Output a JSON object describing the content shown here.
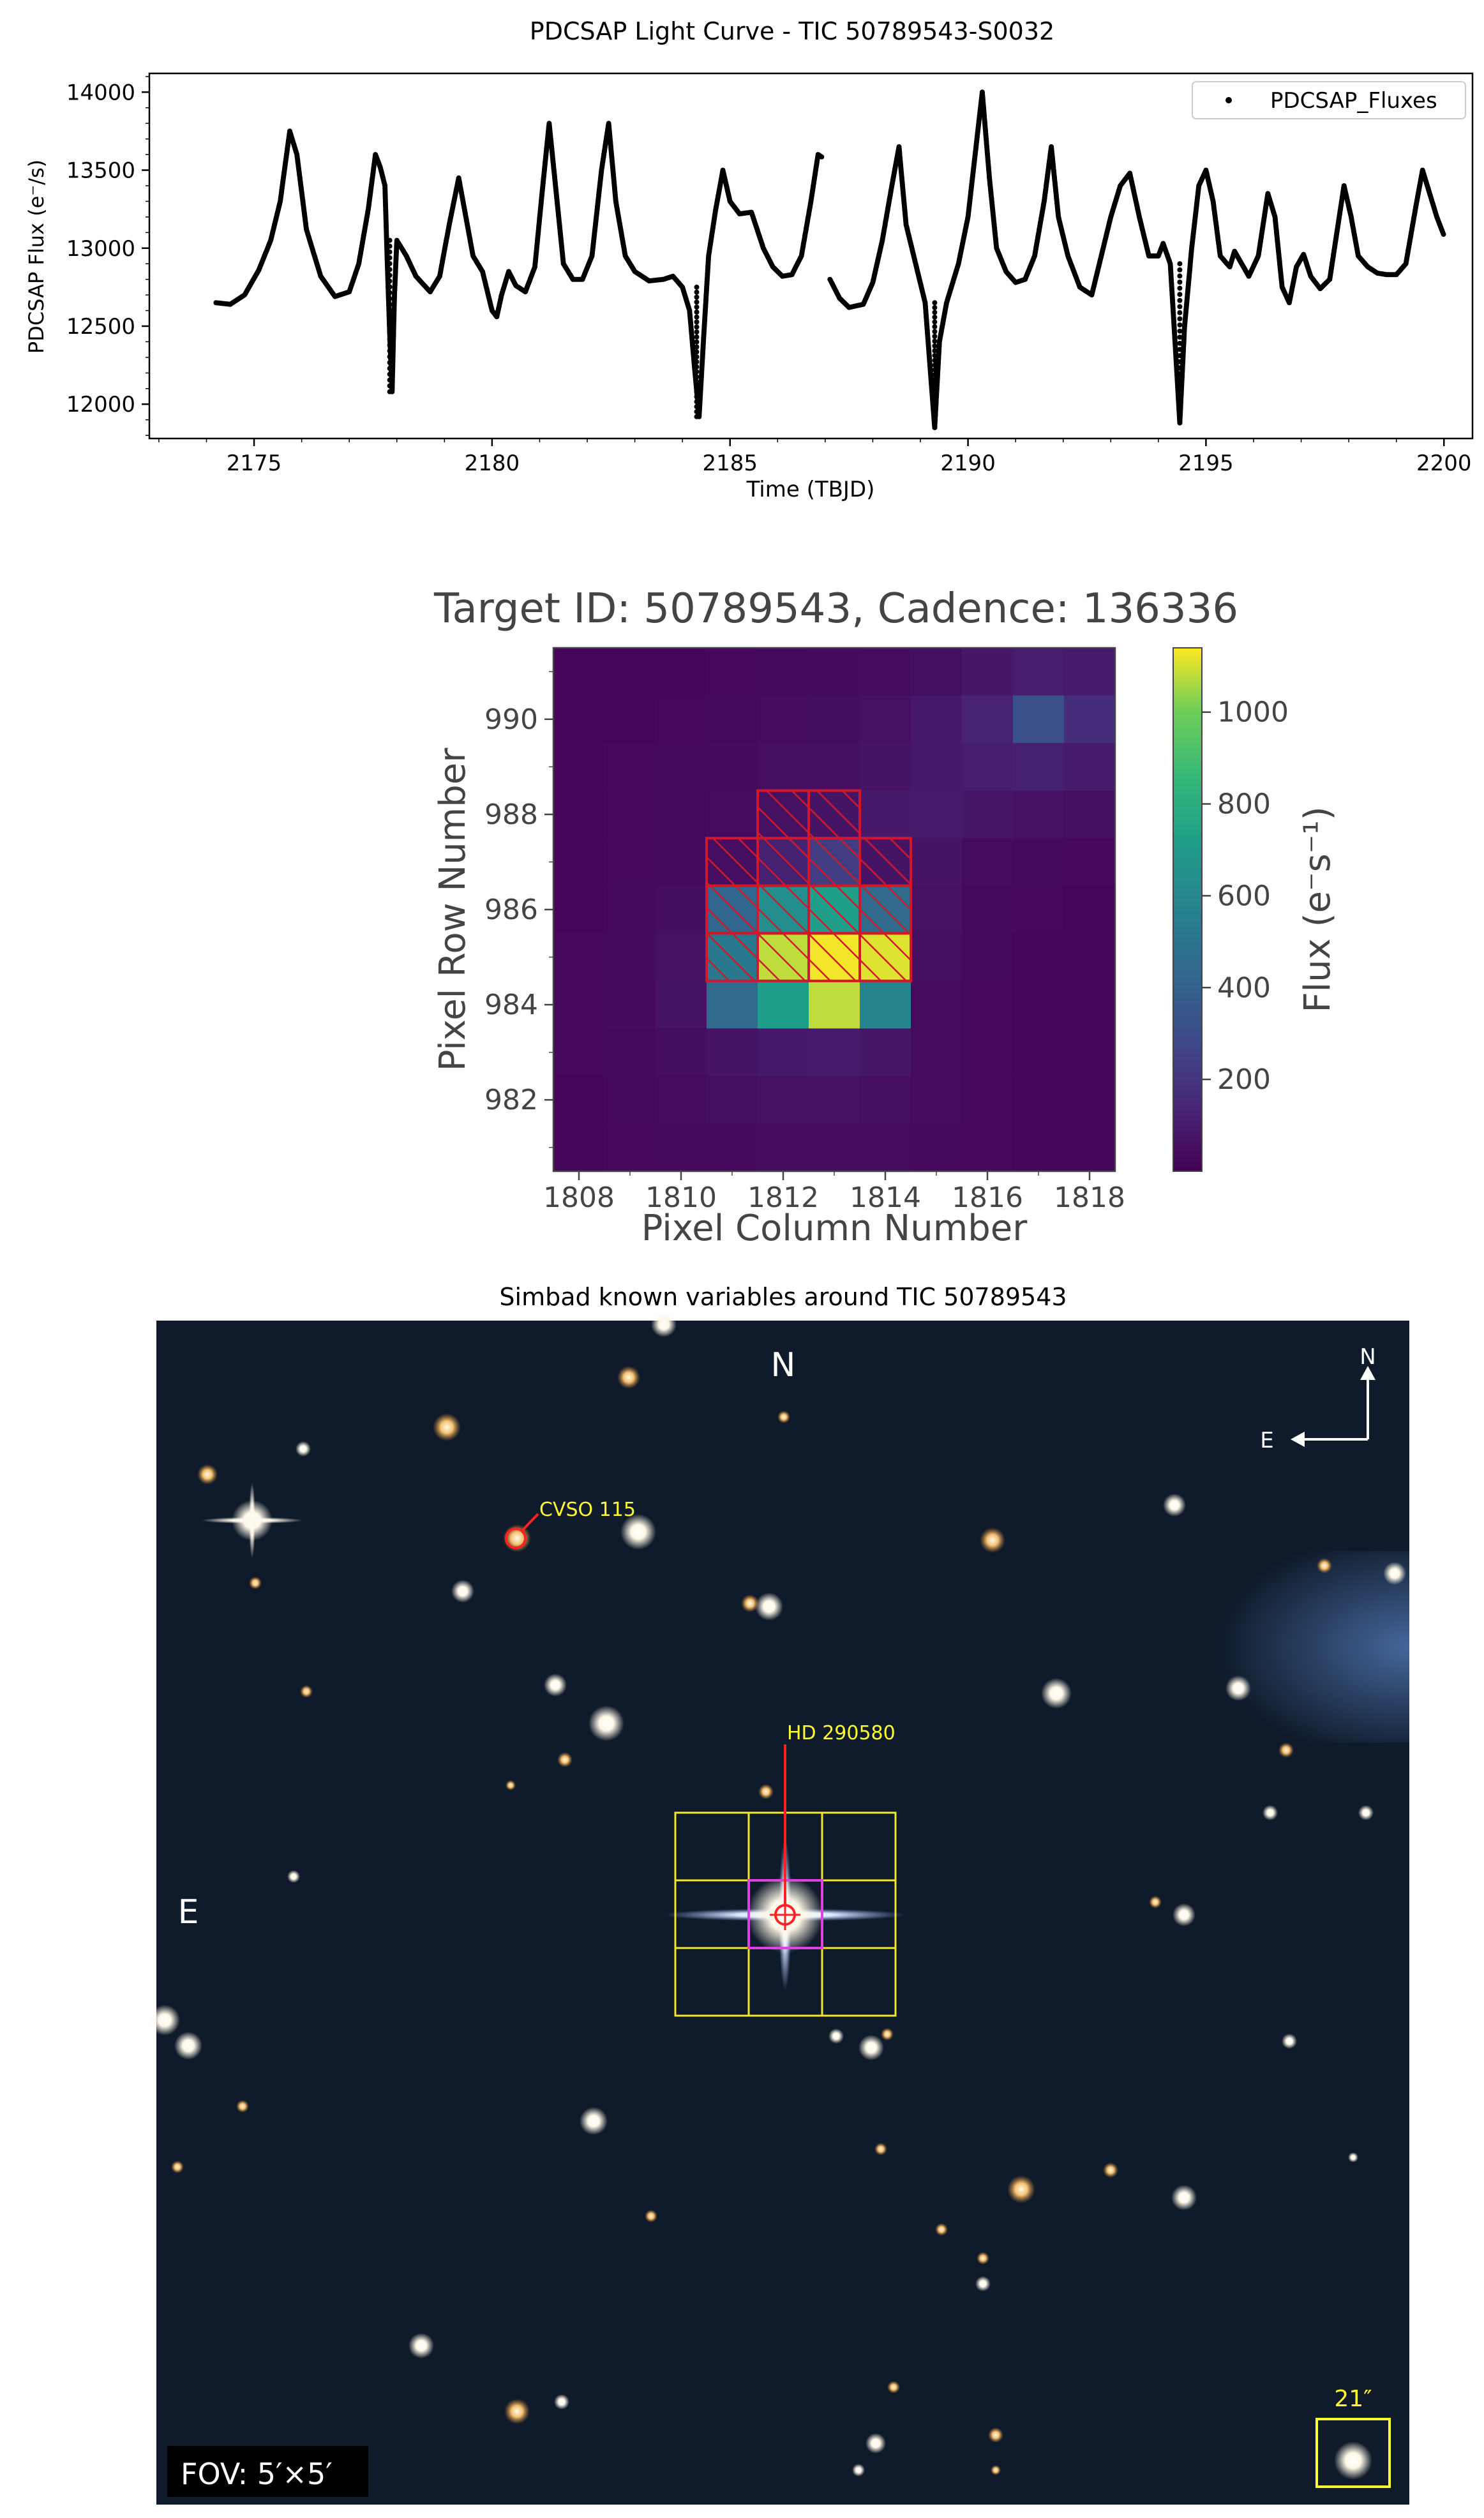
{
  "chart_data": [
    {
      "type": "scatter",
      "title": "PDCSAP Light Curve - TIC 50789543-S0032",
      "xlabel": "Time (TBJD)",
      "ylabel": "PDCSAP Flux (e⁻/s)",
      "xlim": [
        2172.8,
        2200.6
      ],
      "ylim": [
        11780,
        14120
      ],
      "xticks": [
        2175,
        2180,
        2185,
        2190,
        2195,
        2200
      ],
      "yticks": [
        12000,
        12500,
        13000,
        13500,
        14000
      ],
      "xtick_labels": [
        "2175",
        "2180",
        "2185",
        "2190",
        "2195",
        "2200"
      ],
      "ytick_labels": [
        "12000",
        "12500",
        "13000",
        "13500",
        "14000"
      ],
      "legend": "top-right",
      "grid": false,
      "marker_color": "#000000",
      "series": [
        {
          "name": "PDCSAP_Fluxes",
          "segments": [
            [
              [
                2174.2,
                12650
              ],
              [
                2174.5,
                12640
              ],
              [
                2174.8,
                12700
              ],
              [
                2175.1,
                12860
              ],
              [
                2175.35,
                13050
              ],
              [
                2175.55,
                13300
              ],
              [
                2175.75,
                13750
              ],
              [
                2175.9,
                13600
              ],
              [
                2176.1,
                13120
              ],
              [
                2176.4,
                12820
              ],
              [
                2176.7,
                12690
              ],
              [
                2177.0,
                12720
              ],
              [
                2177.2,
                12900
              ],
              [
                2177.4,
                13250
              ],
              [
                2177.55,
                13600
              ],
              [
                2177.65,
                13520
              ],
              [
                2177.75,
                13400
              ],
              [
                2177.8,
                12900
              ],
              [
                2177.85,
                12450
              ],
              [
                2177.9,
                12080
              ],
              [
                2177.95,
                12700
              ],
              [
                2178.0,
                13050
              ],
              [
                2178.2,
                12950
              ],
              [
                2178.4,
                12820
              ],
              [
                2178.7,
                12720
              ],
              [
                2178.9,
                12820
              ],
              [
                2179.1,
                13150
              ],
              [
                2179.3,
                13450
              ],
              [
                2179.45,
                13200
              ],
              [
                2179.6,
                12950
              ],
              [
                2179.8,
                12850
              ],
              [
                2180.0,
                12600
              ],
              [
                2180.1,
                12560
              ],
              [
                2180.2,
                12700
              ],
              [
                2180.35,
                12850
              ],
              [
                2180.5,
                12760
              ],
              [
                2180.7,
                12720
              ],
              [
                2180.9,
                12880
              ],
              [
                2181.05,
                13350
              ],
              [
                2181.2,
                13800
              ],
              [
                2181.35,
                13350
              ],
              [
                2181.5,
                12900
              ],
              [
                2181.7,
                12800
              ],
              [
                2181.9,
                12800
              ],
              [
                2182.1,
                12950
              ],
              [
                2182.3,
                13500
              ],
              [
                2182.45,
                13800
              ],
              [
                2182.6,
                13300
              ],
              [
                2182.8,
                12950
              ],
              [
                2183.0,
                12850
              ],
              [
                2183.3,
                12790
              ],
              [
                2183.6,
                12800
              ],
              [
                2183.8,
                12820
              ],
              [
                2184.0,
                12750
              ],
              [
                2184.15,
                12600
              ],
              [
                2184.25,
                12250
              ],
              [
                2184.35,
                11920
              ],
              [
                2184.45,
                12450
              ],
              [
                2184.55,
                12950
              ],
              [
                2184.7,
                13250
              ],
              [
                2184.85,
                13500
              ],
              [
                2185.0,
                13300
              ],
              [
                2185.2,
                13220
              ],
              [
                2185.45,
                13230
              ],
              [
                2185.7,
                13000
              ],
              [
                2185.9,
                12880
              ],
              [
                2186.1,
                12820
              ],
              [
                2186.3,
                12830
              ],
              [
                2186.5,
                12950
              ],
              [
                2186.7,
                13300
              ],
              [
                2186.85,
                13600
              ],
              [
                2186.95,
                13580
              ]
            ],
            [
              [
                2187.1,
                12800
              ],
              [
                2187.3,
                12680
              ],
              [
                2187.5,
                12620
              ],
              [
                2187.8,
                12640
              ],
              [
                2188.0,
                12780
              ],
              [
                2188.2,
                13050
              ],
              [
                2188.4,
                13400
              ],
              [
                2188.55,
                13650
              ],
              [
                2188.7,
                13150
              ],
              [
                2188.9,
                12900
              ],
              [
                2189.1,
                12650
              ],
              [
                2189.2,
                12250
              ],
              [
                2189.3,
                11850
              ],
              [
                2189.4,
                12400
              ],
              [
                2189.55,
                12650
              ],
              [
                2189.8,
                12900
              ],
              [
                2190.0,
                13200
              ],
              [
                2190.15,
                13600
              ],
              [
                2190.3,
                14000
              ],
              [
                2190.45,
                13450
              ],
              [
                2190.6,
                13000
              ],
              [
                2190.8,
                12850
              ],
              [
                2191.0,
                12780
              ],
              [
                2191.2,
                12800
              ],
              [
                2191.4,
                12950
              ],
              [
                2191.6,
                13300
              ],
              [
                2191.75,
                13650
              ],
              [
                2191.9,
                13200
              ],
              [
                2192.1,
                12950
              ],
              [
                2192.35,
                12750
              ],
              [
                2192.6,
                12700
              ],
              [
                2192.8,
                12950
              ],
              [
                2193.0,
                13200
              ],
              [
                2193.2,
                13400
              ],
              [
                2193.4,
                13480
              ],
              [
                2193.6,
                13200
              ],
              [
                2193.8,
                12950
              ],
              [
                2194.0,
                12950
              ],
              [
                2194.1,
                13030
              ],
              [
                2194.25,
                12900
              ],
              [
                2194.35,
                12400
              ],
              [
                2194.45,
                11880
              ],
              [
                2194.55,
                12500
              ],
              [
                2194.7,
                13000
              ],
              [
                2194.85,
                13400
              ],
              [
                2195.0,
                13500
              ],
              [
                2195.15,
                13300
              ],
              [
                2195.3,
                12950
              ],
              [
                2195.5,
                12880
              ],
              [
                2195.6,
                12980
              ],
              [
                2195.75,
                12900
              ],
              [
                2195.9,
                12820
              ],
              [
                2196.1,
                12950
              ],
              [
                2196.3,
                13350
              ],
              [
                2196.45,
                13200
              ],
              [
                2196.6,
                12750
              ],
              [
                2196.75,
                12650
              ],
              [
                2196.9,
                12880
              ],
              [
                2197.05,
                12960
              ],
              [
                2197.2,
                12820
              ],
              [
                2197.4,
                12740
              ],
              [
                2197.6,
                12800
              ],
              [
                2197.75,
                13100
              ],
              [
                2197.9,
                13400
              ],
              [
                2198.05,
                13200
              ],
              [
                2198.2,
                12950
              ],
              [
                2198.4,
                12880
              ],
              [
                2198.6,
                12840
              ],
              [
                2198.8,
                12830
              ],
              [
                2199.0,
                12830
              ],
              [
                2199.2,
                12900
              ],
              [
                2199.4,
                13250
              ],
              [
                2199.55,
                13500
              ],
              [
                2199.7,
                13350
              ],
              [
                2199.85,
                13200
              ],
              [
                2200.0,
                13080
              ]
            ]
          ],
          "dips": [
            {
              "x": 2177.85,
              "y_from": 13050,
              "y_to": 12080
            },
            {
              "x": 2184.3,
              "y_from": 12750,
              "y_to": 11920
            },
            {
              "x": 2189.3,
              "y_from": 12650,
              "y_to": 11850
            },
            {
              "x": 2194.45,
              "y_from": 12900,
              "y_to": 11880
            }
          ]
        }
      ]
    },
    {
      "type": "heatmap",
      "title": "Target ID: 50789543, Cadence: 136336",
      "xlabel": "Pixel Column Number",
      "ylabel": "Pixel Row Number",
      "colorbar_label": "Flux (e⁻s⁻¹)",
      "xlim": [
        1807.5,
        1818.5
      ],
      "ylim": [
        980.5,
        991.5
      ],
      "xticks": [
        1808,
        1810,
        1812,
        1814,
        1816,
        1818
      ],
      "yticks": [
        982,
        984,
        986,
        988,
        990
      ],
      "xtick_labels": [
        "1808",
        "1810",
        "1812",
        "1814",
        "1816",
        "1818"
      ],
      "ytick_labels": [
        "982",
        "984",
        "986",
        "988",
        "990"
      ],
      "colorbar_ticks": [
        200,
        400,
        600,
        800,
        1000
      ],
      "colorbar_tick_labels": [
        "200",
        "400",
        "600",
        "800",
        "1000"
      ],
      "vmin": 0,
      "vmax": 1140,
      "colormap": "viridis",
      "col_start": 1808,
      "row_start": 991,
      "rows": [
        [
          20,
          20,
          20,
          25,
          30,
          35,
          40,
          55,
          80,
          110,
          95
        ],
        [
          20,
          20,
          25,
          30,
          40,
          45,
          60,
          90,
          130,
          320,
          170
        ],
        [
          20,
          25,
          30,
          35,
          50,
          55,
          70,
          90,
          110,
          120,
          100
        ],
        [
          20,
          25,
          30,
          40,
          60,
          70,
          90,
          100,
          80,
          60,
          50
        ],
        [
          20,
          25,
          35,
          50,
          120,
          230,
          70,
          70,
          40,
          30,
          25
        ],
        [
          20,
          30,
          45,
          430,
          640,
          720,
          450,
          60,
          30,
          25,
          20
        ],
        [
          25,
          35,
          60,
          520,
          1080,
          1130,
          1110,
          50,
          30,
          20,
          20
        ],
        [
          25,
          35,
          70,
          450,
          720,
          1080,
          580,
          40,
          25,
          20,
          20
        ],
        [
          25,
          30,
          45,
          70,
          90,
          100,
          80,
          40,
          25,
          20,
          20
        ],
        [
          20,
          30,
          40,
          50,
          60,
          60,
          50,
          40,
          25,
          20,
          20
        ],
        [
          20,
          25,
          30,
          35,
          40,
          40,
          40,
          35,
          25,
          20,
          20
        ]
      ],
      "aperture_color": "#d0182a",
      "aperture_pixels": [
        [
          1812,
          988
        ],
        [
          1813,
          988
        ],
        [
          1811,
          987
        ],
        [
          1812,
          987
        ],
        [
          1813,
          987
        ],
        [
          1814,
          987
        ],
        [
          1811,
          986
        ],
        [
          1812,
          986
        ],
        [
          1813,
          986
        ],
        [
          1814,
          986
        ],
        [
          1811,
          985
        ],
        [
          1812,
          985
        ],
        [
          1813,
          985
        ],
        [
          1814,
          985
        ]
      ]
    }
  ],
  "sky": {
    "title": "Simbad known variables around TIC 50789543",
    "north_label": "N",
    "east_label": "E",
    "compass_north": "N",
    "compass_east": "E",
    "fov_label": "FOV: 5′×5′",
    "scale_label": "21″",
    "variables": [
      {
        "name": "CVSO 115",
        "color": "#ff2222"
      },
      {
        "name": "HD 290580",
        "color": "#ff2222"
      }
    ],
    "annotation_color": "#ffff33",
    "grid_color": "#f2e829",
    "target_box_color": "#e040e0",
    "background_color": "#0f1a2a"
  }
}
